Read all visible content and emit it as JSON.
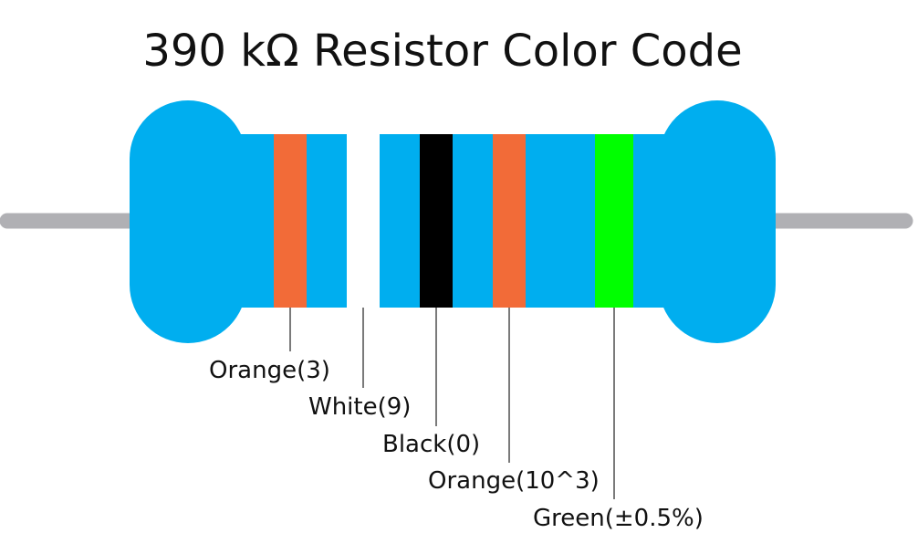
{
  "title": "390 kΩ Resistor Color Code",
  "colors": {
    "body": "#00aeef",
    "lead": "#b0b0b4",
    "leader_line": "#222222"
  },
  "bands": [
    {
      "name": "band-1",
      "color_name": "Orange",
      "label": "Orange(3)",
      "color": "#f26b38"
    },
    {
      "name": "band-2",
      "color_name": "White",
      "label": "White(9)",
      "color": "#ffffff"
    },
    {
      "name": "band-3",
      "color_name": "Black",
      "label": "Black(0)",
      "color": "#000000"
    },
    {
      "name": "multiplier-band",
      "color_name": "Orange",
      "label": "Orange(10^3)",
      "color": "#f26b38"
    },
    {
      "name": "tolerance-band",
      "color_name": "Green",
      "label": "Green(±0.5%)",
      "color": "#00ff00"
    }
  ]
}
